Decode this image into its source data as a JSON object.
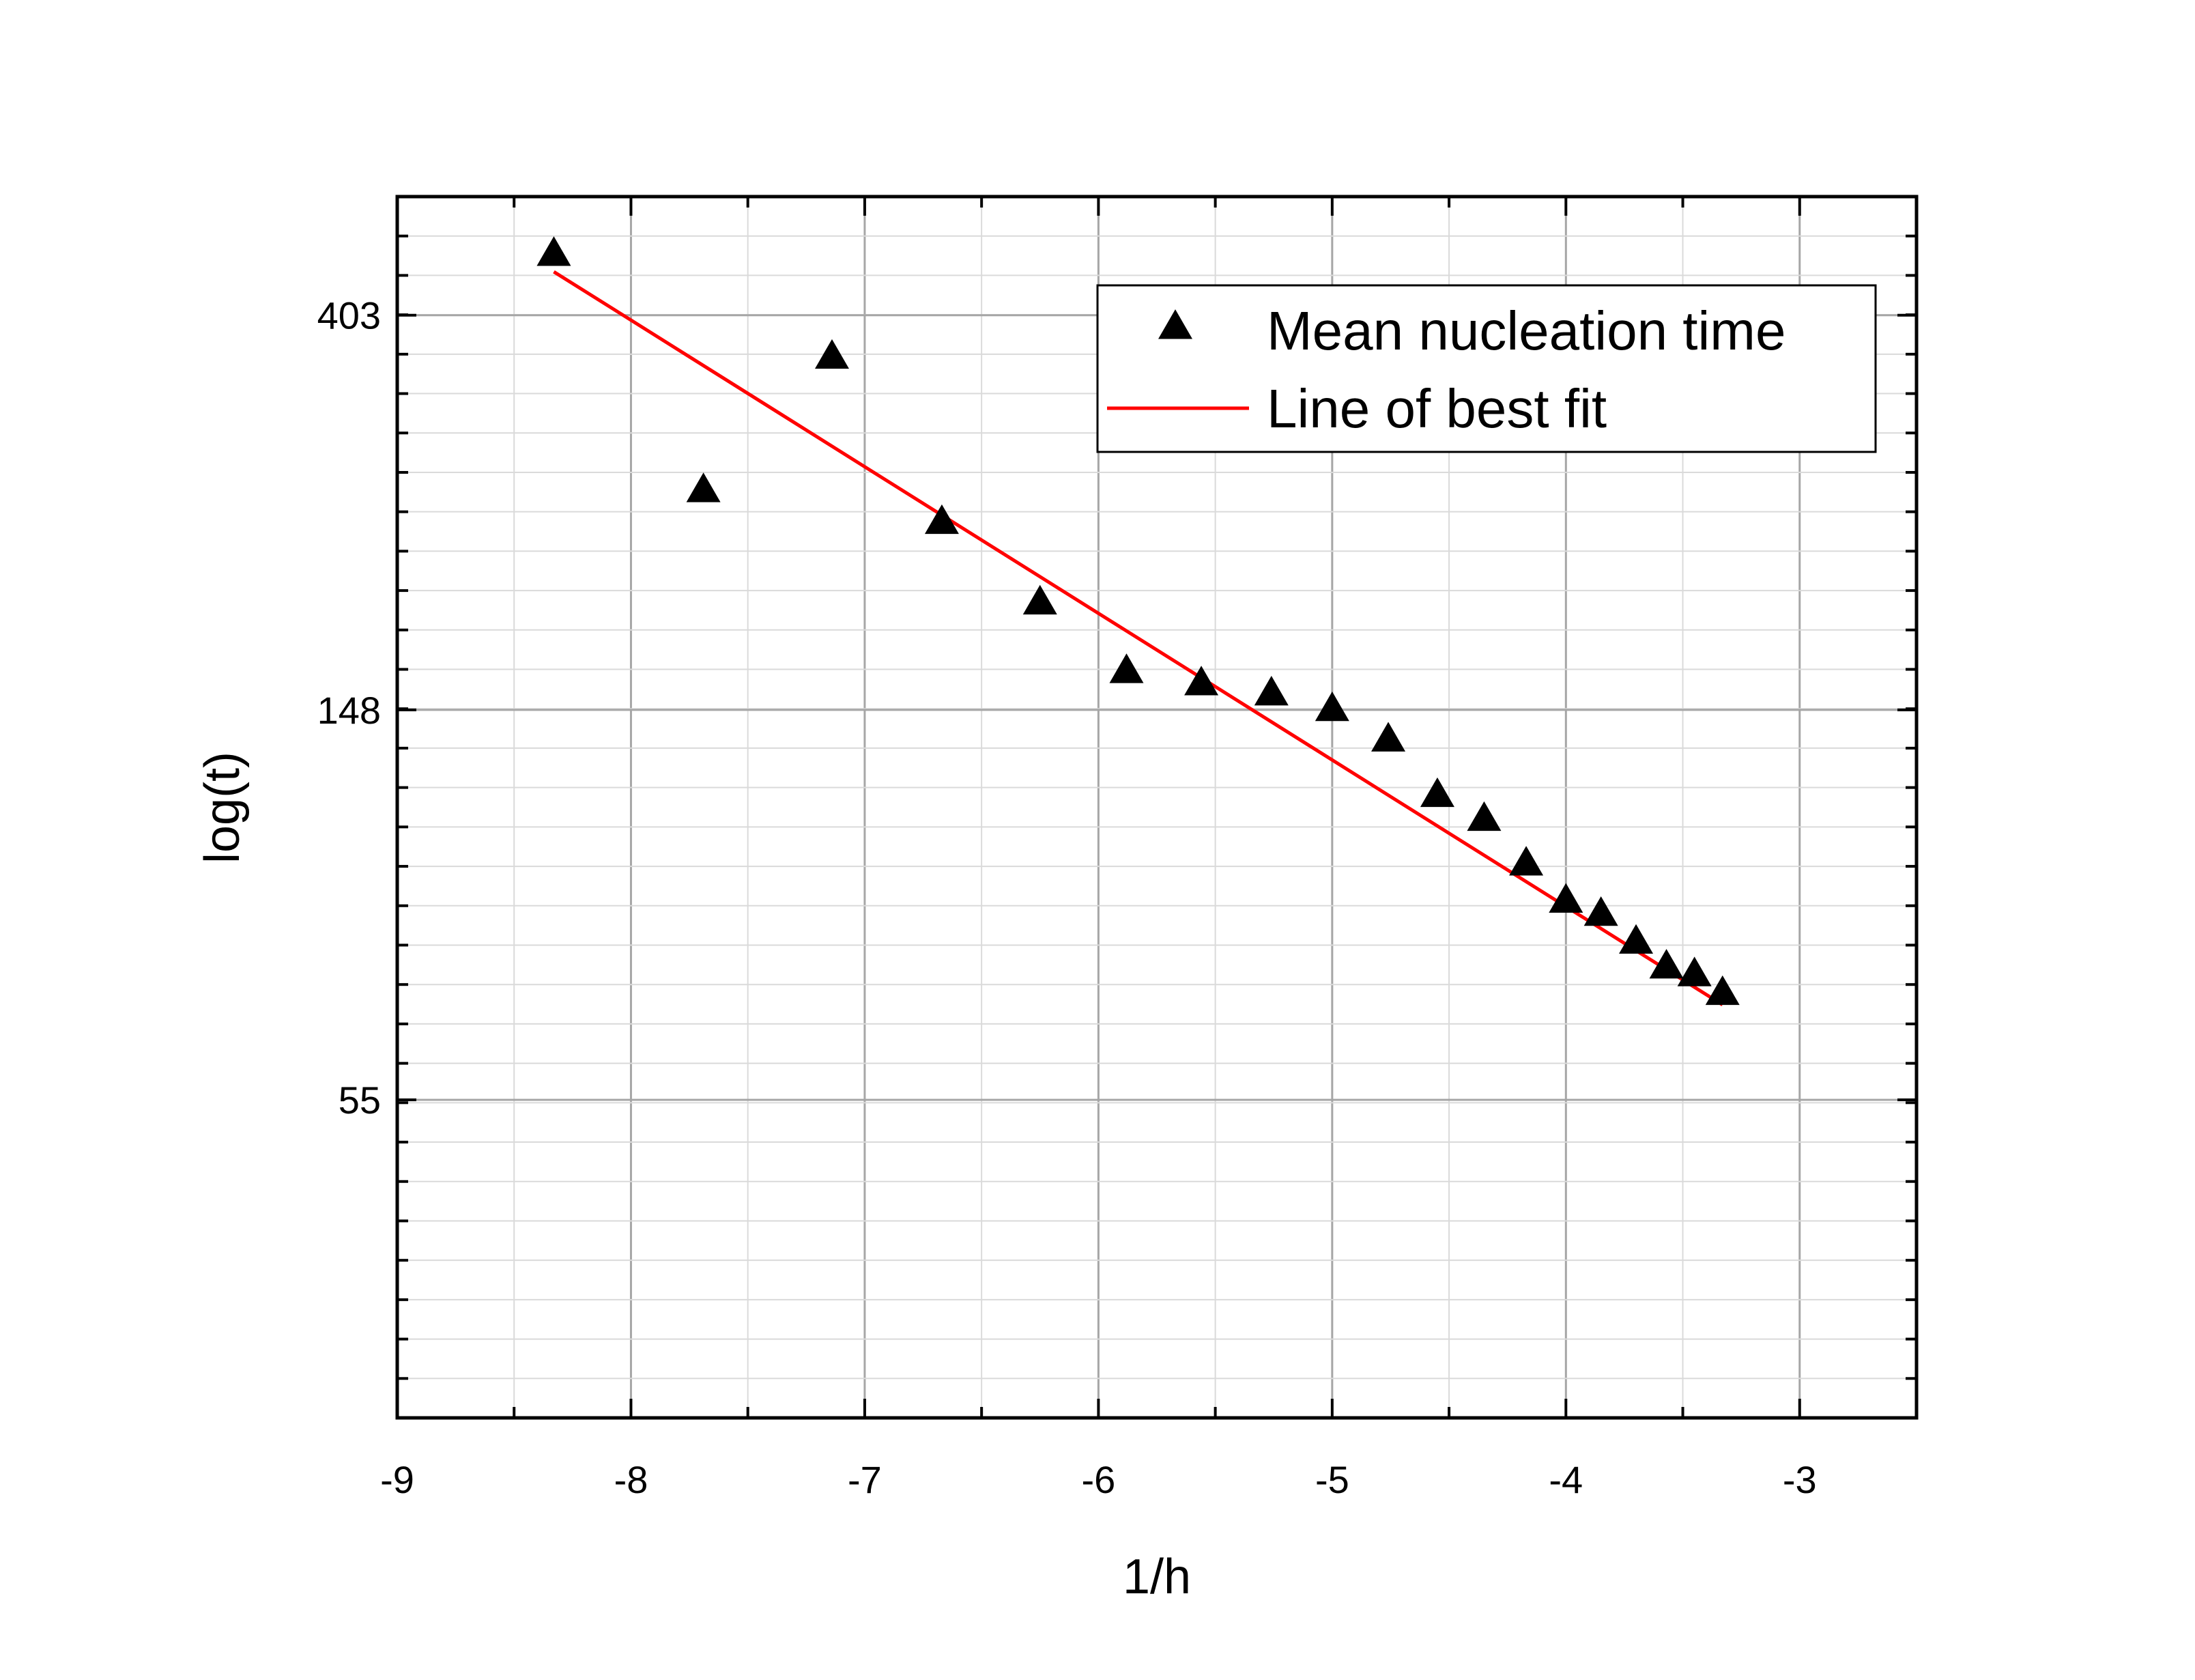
{
  "chart_data": {
    "type": "scatter",
    "title": "",
    "xlabel": "1/h",
    "ylabel": "log(t)",
    "xlim": [
      -9,
      -2.5
    ],
    "ylim_ln": [
      3.2,
      6.3
    ],
    "x_ticks": [
      -9,
      -8,
      -7,
      -6,
      -5,
      -4,
      -3
    ],
    "x_tick_labels": [
      "-9",
      "-8",
      "-7",
      "-6",
      "-5",
      "-4",
      "-3"
    ],
    "y_ticks": [
      55,
      148,
      403
    ],
    "y_tick_labels": [
      "55",
      "148",
      "403"
    ],
    "y_scale": "log (natural)",
    "grid": true,
    "legend_position": "top-right",
    "series": [
      {
        "name": "Mean nucleation time",
        "kind": "scatter",
        "marker": "triangle",
        "color": "#000000",
        "points": [
          {
            "x": -8.33,
            "y": 470
          },
          {
            "x": -7.69,
            "y": 258
          },
          {
            "x": -7.14,
            "y": 362
          },
          {
            "x": -6.67,
            "y": 238
          },
          {
            "x": -6.25,
            "y": 194
          },
          {
            "x": -5.88,
            "y": 163
          },
          {
            "x": -5.56,
            "y": 158
          },
          {
            "x": -5.26,
            "y": 154
          },
          {
            "x": -5.0,
            "y": 148
          },
          {
            "x": -4.76,
            "y": 137
          },
          {
            "x": -4.55,
            "y": 119
          },
          {
            "x": -4.35,
            "y": 112
          },
          {
            "x": -4.17,
            "y": 100
          },
          {
            "x": -4.0,
            "y": 91
          },
          {
            "x": -3.85,
            "y": 88
          },
          {
            "x": -3.7,
            "y": 82
          },
          {
            "x": -3.57,
            "y": 77
          },
          {
            "x": -3.45,
            "y": 75.5
          },
          {
            "x": -3.33,
            "y": 72
          }
        ]
      },
      {
        "name": "Line of best fit",
        "kind": "line",
        "color": "#ff0000",
        "points": [
          {
            "x": -8.33,
            "y": 450
          },
          {
            "x": -3.33,
            "y": 70
          }
        ]
      }
    ]
  }
}
